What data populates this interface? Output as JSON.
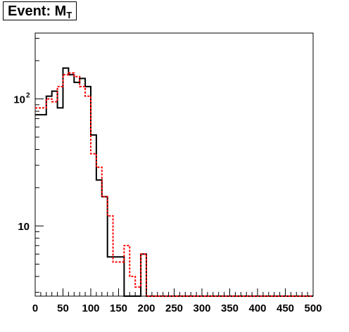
{
  "title": {
    "main": "Event: M",
    "subscript": "T"
  },
  "chart_data": {
    "type": "histogram",
    "xlim": [
      0,
      500
    ],
    "ylim": [
      2.8,
      330
    ],
    "yscale": "log",
    "x_ticks": [
      "0",
      "50",
      "100",
      "150",
      "200",
      "250",
      "300",
      "350",
      "400",
      "450",
      "500"
    ],
    "y_ticks": [
      {
        "value": 10,
        "base": "10",
        "exp": ""
      },
      {
        "value": 100,
        "base": "10",
        "exp": "2"
      }
    ],
    "bin_edges": [
      0,
      10,
      20,
      30,
      40,
      50,
      60,
      70,
      80,
      90,
      100,
      110,
      120,
      130,
      140,
      150,
      160,
      170,
      180,
      190,
      200,
      210,
      220,
      230,
      240,
      250,
      260,
      270,
      280,
      290,
      300,
      310,
      320,
      330,
      340,
      350,
      360,
      370,
      380,
      390,
      400,
      410,
      420,
      430,
      440,
      450,
      460,
      470,
      480,
      490,
      500
    ],
    "series": [
      {
        "style": "solid",
        "color": "#000000",
        "values": [
          75,
          75,
          105,
          115,
          85,
          175,
          155,
          135,
          145,
          125,
          52,
          23,
          17,
          5.7,
          5.7,
          5.7,
          0,
          0,
          0,
          6,
          0,
          0,
          0,
          0,
          0,
          0,
          0,
          0,
          0,
          0,
          0,
          0,
          0,
          0,
          0,
          0,
          0,
          0,
          0,
          0,
          0,
          0,
          0,
          0,
          0,
          0,
          0,
          0,
          0,
          0
        ]
      },
      {
        "style": "dashed",
        "color": "#ff0000",
        "values": [
          85,
          85,
          100,
          95,
          125,
          155,
          160,
          150,
          125,
          105,
          37,
          29,
          17,
          12,
          5.2,
          5.2,
          7,
          4,
          3.3,
          6,
          0,
          0,
          0,
          0,
          0,
          0,
          0,
          0,
          0,
          0,
          0,
          0,
          0,
          0,
          0,
          0,
          0,
          0,
          0,
          0,
          0,
          0,
          0,
          0,
          0,
          0,
          0,
          0,
          0,
          0
        ]
      }
    ]
  }
}
